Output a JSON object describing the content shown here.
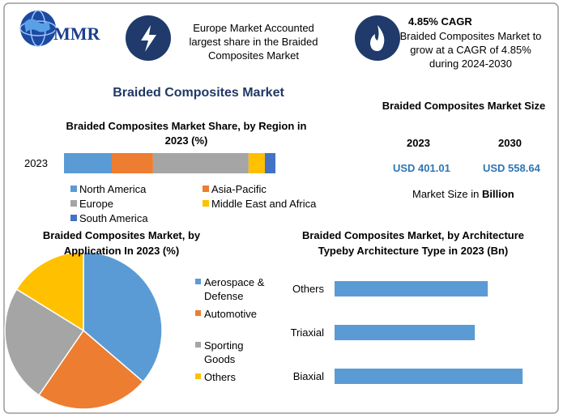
{
  "header": {
    "logo": "MMR",
    "info_1": "Europe Market Accounted largest share in the Braided Composites Market",
    "info_2_title": "4.85% CAGR",
    "info_2_text": "Braided Composites Market to grow at a CAGR of 4.85% during 2024-2030"
  },
  "title": "Braided Composites Market",
  "size_panel": {
    "title": "Braided Composites Market Size",
    "years": [
      "2023",
      "2030"
    ],
    "values": [
      "USD 401.01",
      "USD 558.64"
    ],
    "note": "Market Size in ",
    "note_unit": "Billion"
  },
  "chart_data": [
    {
      "type": "bar",
      "orientation": "horizontal",
      "stacked": true,
      "title": "Braided Composites Market Share, by Region in 2023 (%)",
      "categories": [
        "2023"
      ],
      "xlim": [
        0,
        100
      ],
      "series": [
        {
          "name": "North America",
          "color": "#5b9bd5",
          "values": [
            22.6
          ]
        },
        {
          "name": "Asia-Pacific",
          "color": "#ed7d31",
          "values": [
            19.5
          ]
        },
        {
          "name": "Europe",
          "color": "#a5a5a5",
          "values": [
            45.2
          ]
        },
        {
          "name": "Middle East and Africa",
          "color": "#ffc000",
          "values": [
            7.7
          ]
        },
        {
          "name": "South America",
          "color": "#4472c4",
          "values": [
            5.0
          ]
        }
      ]
    },
    {
      "type": "pie",
      "title": "Braided Composites Market, by Application In 2023 (%)",
      "categories": [
        "Aerospace & Defense",
        "Automotive",
        "Sporting Goods",
        "Others"
      ],
      "values": [
        36.3,
        23.3,
        24.2,
        16.2
      ],
      "colors": [
        "#5b9bd5",
        "#ed7d31",
        "#a5a5a5",
        "#ffc000"
      ]
    },
    {
      "type": "bar",
      "orientation": "horizontal",
      "stacked": false,
      "title": "Braided Composites Market, by Architecture Typeby Architecture Type in 2023 (Bn)",
      "categories": [
        "Others",
        "Triaxial",
        "Biaxial"
      ],
      "values": [
        127.6,
        116.8,
        156.6
      ],
      "color": "#5b9bd5",
      "xlim": [
        0,
        170
      ]
    }
  ]
}
